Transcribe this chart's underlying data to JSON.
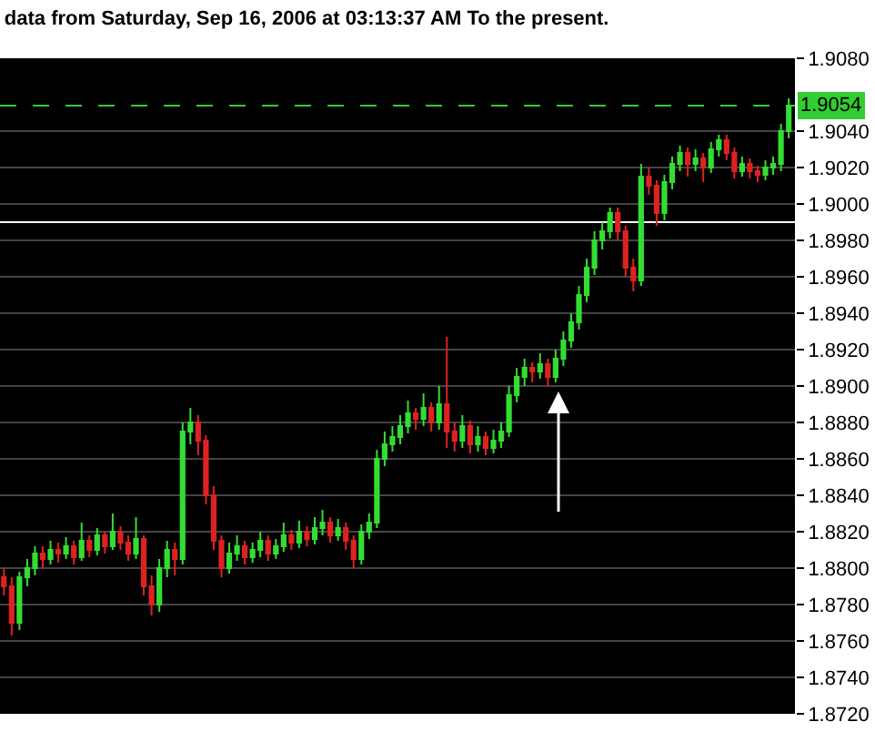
{
  "chart_data": {
    "type": "candlestick",
    "title": "data from Saturday, Sep 16, 2006 at 03:13:37 AM To the present.",
    "categories": [
      null,
      null,
      null,
      null,
      null,
      null,
      null,
      null,
      null,
      null,
      null,
      null,
      null,
      null,
      null,
      null,
      null,
      null,
      null,
      null,
      null,
      null,
      null,
      null,
      null,
      null,
      null,
      null,
      null,
      null,
      null,
      null,
      null,
      null,
      null,
      null,
      null,
      null,
      null,
      null,
      null,
      null,
      null,
      null,
      null,
      null,
      null,
      null,
      null,
      null,
      null,
      null,
      null,
      null,
      null,
      null,
      null,
      null,
      null,
      null,
      null,
      null,
      null,
      null,
      null,
      null,
      null,
      null,
      null,
      null,
      null,
      null,
      null,
      null,
      null,
      null,
      null,
      null,
      null,
      null,
      null,
      null,
      null,
      null,
      null,
      null,
      null,
      null,
      null,
      null,
      null,
      null,
      null,
      null,
      null,
      null,
      null,
      null,
      null,
      null,
      null,
      null
    ],
    "ohlc": [
      [
        1.8795,
        1.88,
        1.8785,
        1.879
      ],
      [
        1.879,
        1.8795,
        1.8763,
        1.877
      ],
      [
        1.877,
        1.8798,
        1.8766,
        1.8795
      ],
      [
        1.8795,
        1.8805,
        1.879,
        1.88
      ],
      [
        1.88,
        1.8812,
        1.8796,
        1.8808
      ],
      [
        1.8808,
        1.8812,
        1.88,
        1.8805
      ],
      [
        1.8805,
        1.8815,
        1.8802,
        1.881
      ],
      [
        1.881,
        1.8814,
        1.8803,
        1.8808
      ],
      [
        1.8808,
        1.8817,
        1.8805,
        1.8812
      ],
      [
        1.8812,
        1.8815,
        1.8802,
        1.8806
      ],
      [
        1.8806,
        1.8825,
        1.8804,
        1.8815
      ],
      [
        1.8815,
        1.8818,
        1.8806,
        1.881
      ],
      [
        1.881,
        1.8822,
        1.8807,
        1.8818
      ],
      [
        1.8818,
        1.882,
        1.8808,
        1.8812
      ],
      [
        1.8812,
        1.883,
        1.881,
        1.882
      ],
      [
        1.882,
        1.8823,
        1.881,
        1.8814
      ],
      [
        1.8814,
        1.8818,
        1.8804,
        1.8808
      ],
      [
        1.8808,
        1.8828,
        1.8805,
        1.8816
      ],
      [
        1.8816,
        1.8818,
        1.8785,
        1.879
      ],
      [
        1.879,
        1.8796,
        1.8774,
        1.878
      ],
      [
        1.878,
        1.8805,
        1.8776,
        1.88
      ],
      [
        1.88,
        1.8815,
        1.8795,
        1.881
      ],
      [
        1.881,
        1.8814,
        1.8796,
        1.8805
      ],
      [
        1.8805,
        1.888,
        1.8802,
        1.8875
      ],
      [
        1.8875,
        1.8888,
        1.8868,
        1.888
      ],
      [
        1.888,
        1.8884,
        1.8862,
        1.887
      ],
      [
        1.887,
        1.8873,
        1.8835,
        1.884
      ],
      [
        1.884,
        1.8845,
        1.881,
        1.8815
      ],
      [
        1.8815,
        1.8818,
        1.8795,
        1.88
      ],
      [
        1.88,
        1.8814,
        1.8797,
        1.8808
      ],
      [
        1.8808,
        1.8818,
        1.8804,
        1.8812
      ],
      [
        1.8812,
        1.8815,
        1.8802,
        1.8806
      ],
      [
        1.8806,
        1.8814,
        1.8803,
        1.881
      ],
      [
        1.881,
        1.882,
        1.8806,
        1.8815
      ],
      [
        1.8815,
        1.8818,
        1.8804,
        1.8808
      ],
      [
        1.8808,
        1.8816,
        1.8805,
        1.8812
      ],
      [
        1.8812,
        1.8825,
        1.8809,
        1.8818
      ],
      [
        1.8818,
        1.8821,
        1.881,
        1.8814
      ],
      [
        1.8814,
        1.8826,
        1.8811,
        1.882
      ],
      [
        1.882,
        1.8823,
        1.8812,
        1.8816
      ],
      [
        1.8816,
        1.8828,
        1.8813,
        1.8822
      ],
      [
        1.8822,
        1.8832,
        1.8818,
        1.8825
      ],
      [
        1.8825,
        1.8828,
        1.8814,
        1.8818
      ],
      [
        1.8818,
        1.8827,
        1.8815,
        1.8822
      ],
      [
        1.8822,
        1.8825,
        1.881,
        1.8815
      ],
      [
        1.8815,
        1.8818,
        1.88,
        1.8805
      ],
      [
        1.8805,
        1.8824,
        1.8802,
        1.882
      ],
      [
        1.882,
        1.883,
        1.8816,
        1.8825
      ],
      [
        1.8825,
        1.8865,
        1.8822,
        1.886
      ],
      [
        1.886,
        1.8875,
        1.8856,
        1.8868
      ],
      [
        1.8868,
        1.8878,
        1.8864,
        1.8872
      ],
      [
        1.8872,
        1.8884,
        1.8868,
        1.8878
      ],
      [
        1.8878,
        1.8892,
        1.8874,
        1.8885
      ],
      [
        1.8885,
        1.8888,
        1.8876,
        1.8882
      ],
      [
        1.8882,
        1.8896,
        1.8878,
        1.8888
      ],
      [
        1.8888,
        1.8891,
        1.8875,
        1.888
      ],
      [
        1.888,
        1.89,
        1.8876,
        1.889
      ],
      [
        1.889,
        1.8927,
        1.8866,
        1.8875
      ],
      [
        1.8875,
        1.888,
        1.8864,
        1.887
      ],
      [
        1.887,
        1.8884,
        1.8866,
        1.8878
      ],
      [
        1.8878,
        1.8881,
        1.8863,
        1.8868
      ],
      [
        1.8868,
        1.8878,
        1.8864,
        1.8872
      ],
      [
        1.8872,
        1.8875,
        1.8862,
        1.8866
      ],
      [
        1.8866,
        1.8876,
        1.8863,
        1.887
      ],
      [
        1.887,
        1.888,
        1.8866,
        1.8875
      ],
      [
        1.8875,
        1.89,
        1.8872,
        1.8895
      ],
      [
        1.8895,
        1.891,
        1.8891,
        1.8905
      ],
      [
        1.8905,
        1.8915,
        1.89,
        1.891
      ],
      [
        1.891,
        1.8913,
        1.8902,
        1.8908
      ],
      [
        1.8908,
        1.8918,
        1.8904,
        1.8912
      ],
      [
        1.8912,
        1.8915,
        1.89,
        1.8905
      ],
      [
        1.8905,
        1.892,
        1.8902,
        1.8915
      ],
      [
        1.8915,
        1.893,
        1.8911,
        1.8925
      ],
      [
        1.8925,
        1.894,
        1.8921,
        1.8935
      ],
      [
        1.8935,
        1.8955,
        1.8931,
        1.895
      ],
      [
        1.895,
        1.897,
        1.8946,
        1.8965
      ],
      [
        1.8965,
        1.8985,
        1.8961,
        1.898
      ],
      [
        1.898,
        1.899,
        1.8975,
        1.8985
      ],
      [
        1.8985,
        1.8998,
        1.8981,
        1.8995
      ],
      [
        1.8995,
        1.8998,
        1.898,
        1.8985
      ],
      [
        1.8985,
        1.8988,
        1.896,
        1.8965
      ],
      [
        1.8965,
        1.897,
        1.8952,
        1.8958
      ],
      [
        1.8958,
        1.9022,
        1.8955,
        1.9015
      ],
      [
        1.9015,
        1.902,
        1.9005,
        1.901
      ],
      [
        1.901,
        1.9013,
        1.8988,
        1.8995
      ],
      [
        1.8995,
        1.9016,
        1.8991,
        1.9012
      ],
      [
        1.9012,
        1.9026,
        1.9008,
        1.9022
      ],
      [
        1.9022,
        1.9032,
        1.9018,
        1.9028
      ],
      [
        1.9028,
        1.9031,
        1.9015,
        1.9022
      ],
      [
        1.9022,
        1.903,
        1.9018,
        1.9025
      ],
      [
        1.9025,
        1.9028,
        1.9012,
        1.902
      ],
      [
        1.902,
        1.9034,
        1.9017,
        1.903
      ],
      [
        1.903,
        1.9038,
        1.9026,
        1.9035
      ],
      [
        1.9035,
        1.9038,
        1.9024,
        1.9028
      ],
      [
        1.9028,
        1.9031,
        1.9014,
        1.9018
      ],
      [
        1.9018,
        1.9026,
        1.9015,
        1.9022
      ],
      [
        1.9022,
        1.9025,
        1.9014,
        1.9018
      ],
      [
        1.9018,
        1.9021,
        1.9012,
        1.9016
      ],
      [
        1.9016,
        1.9024,
        1.9013,
        1.902
      ],
      [
        1.902,
        1.9026,
        1.9016,
        1.9022
      ],
      [
        1.9022,
        1.9044,
        1.9018,
        1.904
      ],
      [
        1.904,
        1.9058,
        1.9036,
        1.9054
      ]
    ],
    "ylim": [
      1.872,
      1.908
    ],
    "yticks": [
      {
        "value": 1.872,
        "label": "1.8720"
      },
      {
        "value": 1.874,
        "label": "1.8740"
      },
      {
        "value": 1.876,
        "label": "1.8760"
      },
      {
        "value": 1.878,
        "label": "1.8780"
      },
      {
        "value": 1.88,
        "label": "1.8800"
      },
      {
        "value": 1.882,
        "label": "1.8820"
      },
      {
        "value": 1.884,
        "label": "1.8840"
      },
      {
        "value": 1.886,
        "label": "1.8860"
      },
      {
        "value": 1.888,
        "label": "1.8880"
      },
      {
        "value": 1.89,
        "label": "1.8900"
      },
      {
        "value": 1.892,
        "label": "1.8920"
      },
      {
        "value": 1.894,
        "label": "1.8940"
      },
      {
        "value": 1.896,
        "label": "1.8960"
      },
      {
        "value": 1.898,
        "label": "1.8980"
      },
      {
        "value": 1.9,
        "label": "1.9000"
      },
      {
        "value": 1.902,
        "label": "1.9020"
      },
      {
        "value": 1.904,
        "label": "1.9040"
      },
      {
        "value": 1.908,
        "label": "1.9080"
      }
    ],
    "ref_lines": [
      {
        "axis": "y",
        "value": 1.9054,
        "label": "1.9054",
        "color": "#33cc33",
        "line_style": "dashed"
      },
      {
        "axis": "y",
        "value": 1.899,
        "color": "#ffffff",
        "line_style": "solid"
      }
    ],
    "grid": "y",
    "tick_labels": "y"
  }
}
